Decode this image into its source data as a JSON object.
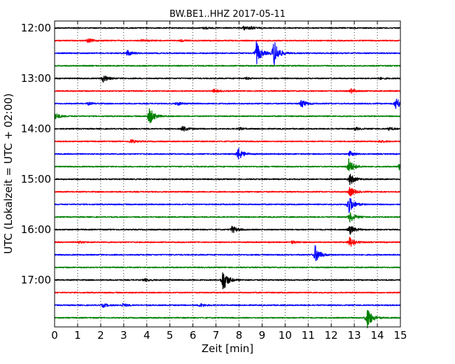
{
  "chart_data": {
    "type": "line",
    "title": "BW.BE1..HHZ 2017-05-11",
    "xlabel": "Zeit  [min]",
    "ylabel": "UTC (Lokalzeit = UTC + 02:00)",
    "xlim": [
      0,
      15
    ],
    "x_ticks": [
      "0",
      "1",
      "2",
      "3",
      "4",
      "5",
      "6",
      "7",
      "8",
      "9",
      "10",
      "11",
      "12",
      "13",
      "14",
      "15"
    ],
    "y_ticks": [
      "12:00",
      "13:00",
      "14:00",
      "15:00",
      "16:00",
      "17:00"
    ],
    "grid": "vertical dotted",
    "row_minutes": 15,
    "colors": [
      "#000000",
      "#ff0000",
      "#0000ff",
      "#008000"
    ],
    "rows": [
      {
        "start": "12:00",
        "color": "#000000",
        "events": [
          {
            "t": 6.5,
            "amp": 0.2
          },
          {
            "t": 8.2,
            "amp": 0.3
          },
          {
            "t": 8.5,
            "amp": 0.2
          }
        ]
      },
      {
        "start": "12:15",
        "color": "#ff0000",
        "events": [
          {
            "t": 1.45,
            "amp": 0.35
          },
          {
            "t": 3.8,
            "amp": 0.2
          },
          {
            "t": 5.5,
            "amp": 0.15
          }
        ]
      },
      {
        "start": "12:30",
        "color": "#0000ff",
        "events": [
          {
            "t": 3.15,
            "amp": 0.5
          },
          {
            "t": 8.75,
            "amp": 1.8
          },
          {
            "t": 9.5,
            "amp": 2.3
          }
        ]
      },
      {
        "start": "12:45",
        "color": "#008000",
        "events": []
      },
      {
        "start": "13:00",
        "color": "#000000",
        "events": [
          {
            "t": 2.1,
            "amp": 0.6
          },
          {
            "t": 8.3,
            "amp": 0.15
          },
          {
            "t": 14.1,
            "amp": 0.15
          }
        ]
      },
      {
        "start": "13:15",
        "color": "#ff0000",
        "events": [
          {
            "t": 6.9,
            "amp": 0.25
          },
          {
            "t": 12.85,
            "amp": 0.35
          }
        ]
      },
      {
        "start": "13:30",
        "color": "#0000ff",
        "events": [
          {
            "t": 1.45,
            "amp": 0.2
          },
          {
            "t": 5.3,
            "amp": 0.3
          },
          {
            "t": 10.7,
            "amp": 0.7
          },
          {
            "t": 14.8,
            "amp": 1.0
          }
        ]
      },
      {
        "start": "13:45",
        "color": "#008000",
        "events": [
          {
            "t": 0.0,
            "amp": 0.6
          },
          {
            "t": 4.1,
            "amp": 1.5
          }
        ]
      },
      {
        "start": "14:00",
        "color": "#000000",
        "events": [
          {
            "t": 5.55,
            "amp": 0.45
          },
          {
            "t": 8.0,
            "amp": 0.2
          },
          {
            "t": 13.05,
            "amp": 0.25
          },
          {
            "t": 14.5,
            "amp": 0.25
          }
        ]
      },
      {
        "start": "14:15",
        "color": "#ff0000",
        "events": [
          {
            "t": 3.3,
            "amp": 0.35
          },
          {
            "t": 14.1,
            "amp": 0.2
          }
        ]
      },
      {
        "start": "14:30",
        "color": "#0000ff",
        "events": [
          {
            "t": 7.95,
            "amp": 1.1
          },
          {
            "t": 12.8,
            "amp": 0.4
          }
        ]
      },
      {
        "start": "14:45",
        "color": "#008000",
        "events": [
          {
            "t": 12.75,
            "amp": 1.3
          },
          {
            "t": 14.95,
            "amp": 0.5
          }
        ]
      },
      {
        "start": "15:00",
        "color": "#000000",
        "events": [
          {
            "t": 12.8,
            "amp": 1.0
          }
        ]
      },
      {
        "start": "15:15",
        "color": "#ff0000",
        "events": [
          {
            "t": 12.8,
            "amp": 0.8
          }
        ]
      },
      {
        "start": "15:30",
        "color": "#0000ff",
        "events": [
          {
            "t": 12.75,
            "amp": 1.6
          }
        ]
      },
      {
        "start": "15:45",
        "color": "#008000",
        "events": [
          {
            "t": 12.8,
            "amp": 0.9
          }
        ]
      },
      {
        "start": "16:00",
        "color": "#000000",
        "events": [
          {
            "t": 7.7,
            "amp": 0.6
          },
          {
            "t": 12.8,
            "amp": 0.8
          }
        ]
      },
      {
        "start": "16:15",
        "color": "#ff0000",
        "events": [
          {
            "t": 1.0,
            "amp": 0.2
          },
          {
            "t": 10.3,
            "amp": 0.2
          },
          {
            "t": 12.8,
            "amp": 0.9
          }
        ]
      },
      {
        "start": "16:30",
        "color": "#0000ff",
        "events": [
          {
            "t": 11.3,
            "amp": 1.4
          }
        ]
      },
      {
        "start": "16:45",
        "color": "#008000",
        "events": []
      },
      {
        "start": "17:00",
        "color": "#000000",
        "events": [
          {
            "t": 3.9,
            "amp": 0.25
          },
          {
            "t": 7.3,
            "amp": 1.9
          }
        ]
      },
      {
        "start": "17:15",
        "color": "#ff0000",
        "events": []
      },
      {
        "start": "17:30",
        "color": "#0000ff",
        "events": [
          {
            "t": 2.1,
            "amp": 0.3
          },
          {
            "t": 2.95,
            "amp": 0.25
          },
          {
            "t": 6.3,
            "amp": 0.3
          }
        ]
      },
      {
        "start": "17:45",
        "color": "#008000",
        "events": [
          {
            "t": 13.55,
            "amp": 1.8
          }
        ]
      }
    ]
  }
}
